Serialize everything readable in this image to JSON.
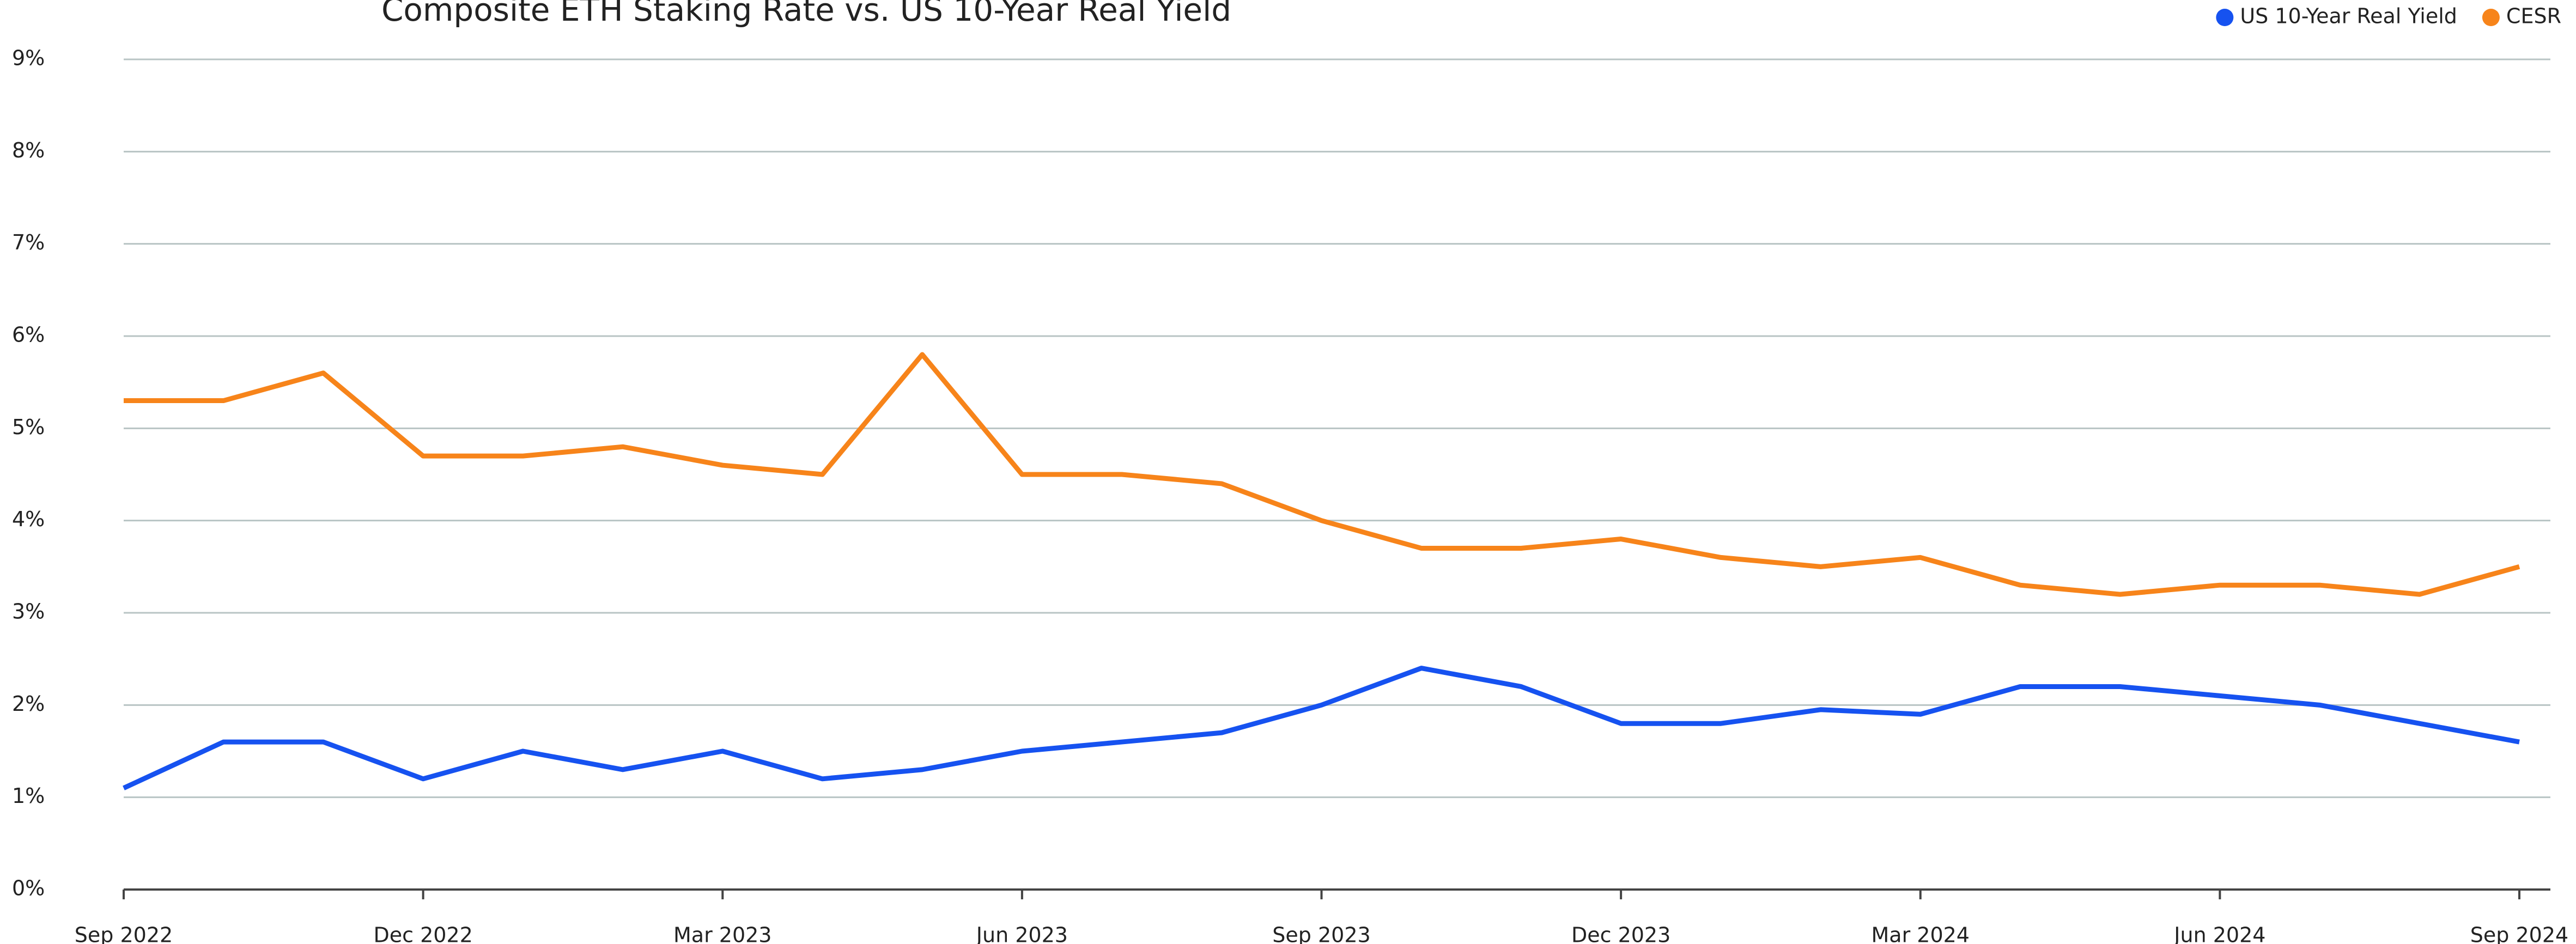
{
  "chart_data": {
    "type": "line",
    "title": "Composite ETH Staking Rate vs. US 10-Year Real Yield",
    "x": [
      "2022-09",
      "2022-10",
      "2022-11",
      "2022-12",
      "2023-01",
      "2023-02",
      "2023-03",
      "2023-04",
      "2023-05",
      "2023-06",
      "2023-07",
      "2023-08",
      "2023-09",
      "2023-10",
      "2023-11",
      "2023-12",
      "2024-01",
      "2024-02",
      "2024-03",
      "2024-04",
      "2024-05",
      "2024-06",
      "2024-07",
      "2024-08",
      "2024-09"
    ],
    "series": [
      {
        "name": "US 10-Year Real Yield",
        "color": "#1652f0",
        "values": [
          1.1,
          1.6,
          1.6,
          1.2,
          1.5,
          1.3,
          1.5,
          1.2,
          1.3,
          1.5,
          1.6,
          1.7,
          2.0,
          2.4,
          2.2,
          1.8,
          1.8,
          1.95,
          1.9,
          2.2,
          2.2,
          2.1,
          2.0,
          1.8,
          1.6
        ]
      },
      {
        "name": "CESR",
        "color": "#f7841a",
        "values": [
          5.3,
          5.3,
          5.6,
          4.7,
          4.7,
          4.8,
          4.6,
          4.5,
          5.8,
          4.5,
          4.5,
          4.4,
          4.0,
          3.7,
          3.7,
          3.8,
          3.6,
          3.5,
          3.6,
          3.3,
          3.2,
          3.3,
          3.3,
          3.2,
          3.5
        ]
      }
    ],
    "ylim": [
      0,
      9
    ],
    "yticks": [
      {
        "value": 0,
        "label": "0%"
      },
      {
        "value": 1,
        "label": "1%"
      },
      {
        "value": 2,
        "label": "2%"
      },
      {
        "value": 3,
        "label": "3%"
      },
      {
        "value": 4,
        "label": "4%"
      },
      {
        "value": 5,
        "label": "5%"
      },
      {
        "value": 6,
        "label": "6%"
      },
      {
        "value": 7,
        "label": "7%"
      },
      {
        "value": 8,
        "label": "8%"
      },
      {
        "value": 9,
        "label": "9%"
      }
    ],
    "xticks": [
      {
        "value": "2022-09",
        "label": "Sep 2022"
      },
      {
        "value": "2022-12",
        "label": "Dec 2022"
      },
      {
        "value": "2023-03",
        "label": "Mar 2023"
      },
      {
        "value": "2023-06",
        "label": "Jun 2023"
      },
      {
        "value": "2023-09",
        "label": "Sep 2023"
      },
      {
        "value": "2023-12",
        "label": "Dec 2023"
      },
      {
        "value": "2024-03",
        "label": "Mar 2024"
      },
      {
        "value": "2024-06",
        "label": "Jun 2024"
      },
      {
        "value": "2024-09",
        "label": "Sep 2024"
      }
    ],
    "grid": true,
    "legend": "top-right"
  }
}
